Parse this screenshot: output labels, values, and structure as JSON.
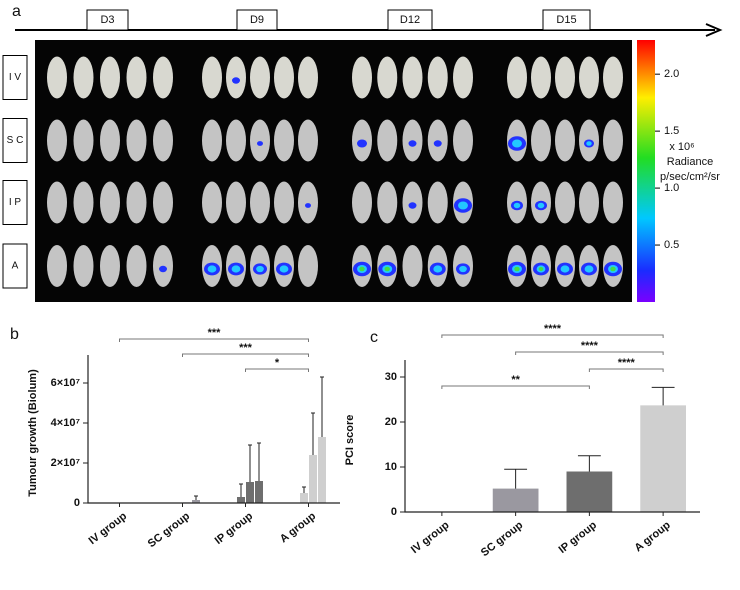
{
  "panel_a": {
    "label": "a",
    "timepoints": [
      "D3",
      "D9",
      "D12",
      "D15"
    ],
    "groups": [
      "I V",
      "S C",
      "I P",
      "A"
    ],
    "colorbar": {
      "scale_label": "x 10⁶",
      "title": "Radiance",
      "unit": "p/sec/cm²/sr",
      "clim": [
        0,
        2.3
      ],
      "ticks": [
        0.5,
        {
          "value": 1,
          "label": "1.0"
        },
        1.5,
        {
          "value": 2,
          "label": "2.0"
        }
      ]
    }
  },
  "chart_data": [
    {
      "panel_label": "b",
      "type": "bar",
      "ylabel": "Tumour growth (Biolum)",
      "categories": [
        "IV group",
        "SC group",
        "IP group",
        "A group"
      ],
      "colors": [
        "#444444",
        "#9a98a0",
        "#6e6e6e",
        "#cfcfcf"
      ],
      "series": [
        {
          "values": [
            0,
            0,
            0,
            0
          ],
          "errors": [
            0,
            0,
            0,
            0
          ]
        },
        {
          "values": [
            0,
            0,
            3000000,
            5000000
          ],
          "errors": [
            0,
            0,
            6500000,
            3000000
          ]
        },
        {
          "values": [
            0,
            300000,
            10500000,
            24000000
          ],
          "errors": [
            0,
            0,
            18500000,
            21000000
          ]
        },
        {
          "values": [
            0,
            1500000,
            11000000,
            33000000
          ],
          "errors": [
            0,
            2000000,
            19000000,
            30000000
          ]
        }
      ],
      "ylim": [
        0,
        70000000
      ],
      "yticks": [
        0,
        {
          "value": 20000000,
          "label": "2×10⁷"
        },
        {
          "value": 40000000,
          "label": "4×10⁷"
        },
        {
          "value": 60000000,
          "label": "6×10⁷"
        }
      ],
      "annotations": [
        {
          "text": "***",
          "from": 0,
          "to": 3
        },
        {
          "text": "***",
          "from": 1,
          "to": 3
        },
        {
          "text": "*",
          "from": 2,
          "to": 3
        }
      ]
    },
    {
      "panel_label": "c",
      "type": "bar",
      "ylabel": "PCI score",
      "categories": [
        "IV group",
        "SC group",
        "IP group",
        "A group"
      ],
      "colors": [
        "#444444",
        "#9a98a0",
        "#6e6e6e",
        "#cfcfcf"
      ],
      "values": [
        0,
        5.2,
        9,
        23.7
      ],
      "errors": [
        0,
        4.3,
        3.5,
        4
      ],
      "ylim": [
        0,
        32
      ],
      "yticks": [
        0,
        10,
        20,
        30
      ],
      "annotations": [
        {
          "text": "****",
          "from": 0,
          "to": 3
        },
        {
          "text": "****",
          "from": 1,
          "to": 3
        },
        {
          "text": "****",
          "from": 2,
          "to": 3
        },
        {
          "text": "**",
          "from": 0,
          "to": 2
        }
      ]
    }
  ]
}
